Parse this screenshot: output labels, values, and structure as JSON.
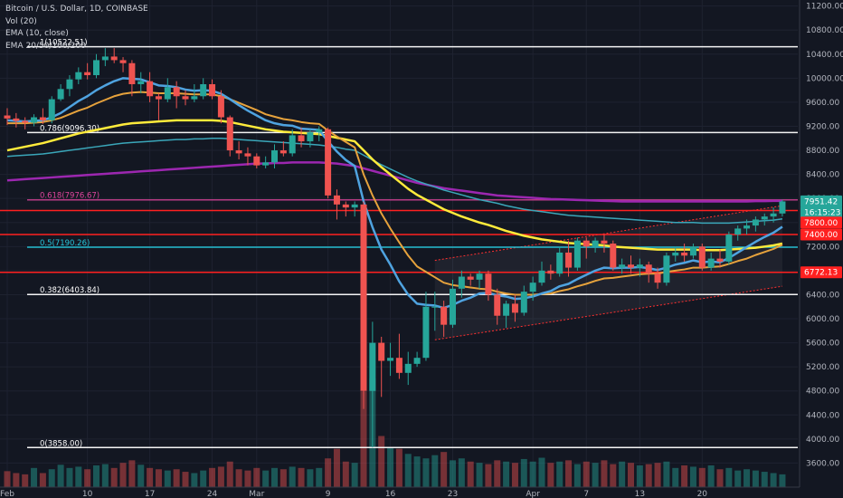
{
  "header": {
    "symbol": "Bitcoin / U.S. Dollar, 1D, COINBASE",
    "vol": "Vol (20)",
    "ema1": "EMA (10, close)",
    "ema2": "EMA 20/50/100/200"
  },
  "colors": {
    "background": "#131722",
    "up": "#26a69a",
    "down": "#ef5350",
    "fib_white": "#ffffff",
    "fib_pink": "#e0459d",
    "fib_cyan": "#26c6da",
    "support_red": "#ff2020",
    "ema10": "#4fa3e0",
    "ema20": "#e6a23c",
    "ema50": "#ffeb3b",
    "ema100": "#3aa6b9",
    "ema200": "#9c27b0"
  },
  "chart_data": {
    "type": "candlestick",
    "ylim": [
      3200,
      11300
    ],
    "y_ticks": [
      "11200.00",
      "10800.00",
      "10400.00",
      "10000.00",
      "9600.00",
      "9200.00",
      "8800.00",
      "8400.00",
      "8000.00",
      "7600.00",
      "7200.00",
      "6800.00",
      "6400.00",
      "6000.00",
      "5600.00",
      "5200.00",
      "4800.00",
      "4400.00",
      "4000.00",
      "3600.00"
    ],
    "x_ticks": [
      {
        "label": "Feb",
        "day": 0
      },
      {
        "label": "10",
        "day": 9
      },
      {
        "label": "17",
        "day": 16
      },
      {
        "label": "24",
        "day": 23
      },
      {
        "label": "Mar",
        "day": 28
      },
      {
        "label": "9",
        "day": 36
      },
      {
        "label": "16",
        "day": 43
      },
      {
        "label": "23",
        "day": 50
      },
      {
        "label": "Apr",
        "day": 59
      },
      {
        "label": "7",
        "day": 65
      },
      {
        "label": "13",
        "day": 71
      },
      {
        "label": "20",
        "day": 78
      }
    ],
    "fib_levels": [
      {
        "label": "1(10522.51)",
        "value": 10522.51,
        "color": "#ffffff"
      },
      {
        "label": "0.786(9096.30)",
        "value": 9096.3,
        "color": "#ffffff"
      },
      {
        "label": "0.618(7976.67)",
        "value": 7976.67,
        "color": "#e0459d"
      },
      {
        "label": "0.5(7190.26)",
        "value": 7190.26,
        "color": "#26c6da"
      },
      {
        "label": "0.382(6403.84)",
        "value": 6403.84,
        "color": "#ffffff"
      },
      {
        "label": "0(3858.00)",
        "value": 3858.0,
        "color": "#ffffff"
      }
    ],
    "support_levels": [
      7800,
      7400,
      6772.13
    ],
    "price_tags": [
      {
        "label": "7951.42",
        "value": 7951.42,
        "color": "#26a69a"
      },
      {
        "label": "16:15:23",
        "value": 7770,
        "color": "#26a69a"
      },
      {
        "label": "7800.00",
        "value": 7600,
        "color": "#ff2020"
      },
      {
        "label": "7400.00",
        "value": 7400,
        "color": "#ff2020"
      },
      {
        "label": "6772.13",
        "value": 6772.13,
        "color": "#ff2020"
      }
    ],
    "candles": [
      {
        "o": 9380,
        "h": 9500,
        "l": 9220,
        "c": 9330
      },
      {
        "o": 9330,
        "h": 9420,
        "l": 9180,
        "c": 9290
      },
      {
        "o": 9290,
        "h": 9350,
        "l": 9150,
        "c": 9260
      },
      {
        "o": 9260,
        "h": 9400,
        "l": 9200,
        "c": 9350
      },
      {
        "o": 9350,
        "h": 9500,
        "l": 9240,
        "c": 9300
      },
      {
        "o": 9300,
        "h": 9700,
        "l": 9250,
        "c": 9650
      },
      {
        "o": 9650,
        "h": 9900,
        "l": 9620,
        "c": 9820
      },
      {
        "o": 9820,
        "h": 10050,
        "l": 9700,
        "c": 9980
      },
      {
        "o": 9980,
        "h": 10180,
        "l": 9900,
        "c": 10100
      },
      {
        "o": 10100,
        "h": 10250,
        "l": 9980,
        "c": 10050
      },
      {
        "o": 10050,
        "h": 10400,
        "l": 10000,
        "c": 10300
      },
      {
        "o": 10300,
        "h": 10500,
        "l": 10200,
        "c": 10360
      },
      {
        "o": 10360,
        "h": 10500,
        "l": 10250,
        "c": 10300
      },
      {
        "o": 10300,
        "h": 10350,
        "l": 10100,
        "c": 10250
      },
      {
        "o": 10250,
        "h": 10300,
        "l": 9700,
        "c": 9900
      },
      {
        "o": 9900,
        "h": 10100,
        "l": 9750,
        "c": 9950
      },
      {
        "o": 9950,
        "h": 10100,
        "l": 9600,
        "c": 9700
      },
      {
        "o": 9700,
        "h": 9750,
        "l": 9300,
        "c": 9650
      },
      {
        "o": 9650,
        "h": 10000,
        "l": 9600,
        "c": 9850
      },
      {
        "o": 9850,
        "h": 9950,
        "l": 9500,
        "c": 9700
      },
      {
        "o": 9700,
        "h": 9800,
        "l": 9550,
        "c": 9650
      },
      {
        "o": 9650,
        "h": 9900,
        "l": 9600,
        "c": 9700
      },
      {
        "o": 9700,
        "h": 10000,
        "l": 9650,
        "c": 9900
      },
      {
        "o": 9900,
        "h": 9980,
        "l": 9650,
        "c": 9700
      },
      {
        "o": 9700,
        "h": 9800,
        "l": 9250,
        "c": 9350
      },
      {
        "o": 9350,
        "h": 9380,
        "l": 8700,
        "c": 8800
      },
      {
        "o": 8800,
        "h": 8950,
        "l": 8650,
        "c": 8750
      },
      {
        "o": 8750,
        "h": 8850,
        "l": 8550,
        "c": 8700
      },
      {
        "o": 8700,
        "h": 8750,
        "l": 8500,
        "c": 8550
      },
      {
        "o": 8550,
        "h": 8700,
        "l": 8500,
        "c": 8600
      },
      {
        "o": 8600,
        "h": 8900,
        "l": 8500,
        "c": 8800
      },
      {
        "o": 8800,
        "h": 8950,
        "l": 8700,
        "c": 8750
      },
      {
        "o": 8750,
        "h": 9150,
        "l": 8700,
        "c": 9050
      },
      {
        "o": 9050,
        "h": 9180,
        "l": 8850,
        "c": 8950
      },
      {
        "o": 8950,
        "h": 9150,
        "l": 8850,
        "c": 9100
      },
      {
        "o": 9100,
        "h": 9200,
        "l": 8950,
        "c": 9150
      },
      {
        "o": 9150,
        "h": 9180,
        "l": 8000,
        "c": 8050
      },
      {
        "o": 8050,
        "h": 8150,
        "l": 7650,
        "c": 7900
      },
      {
        "o": 7900,
        "h": 7950,
        "l": 7700,
        "c": 7850
      },
      {
        "o": 7850,
        "h": 7950,
        "l": 7700,
        "c": 7900
      },
      {
        "o": 7900,
        "h": 7950,
        "l": 4500,
        "c": 4800
      },
      {
        "o": 4800,
        "h": 5950,
        "l": 3858,
        "c": 5600
      },
      {
        "o": 5600,
        "h": 5700,
        "l": 4700,
        "c": 5300
      },
      {
        "o": 5300,
        "h": 5600,
        "l": 5050,
        "c": 5350
      },
      {
        "o": 5350,
        "h": 5750,
        "l": 5000,
        "c": 5100
      },
      {
        "o": 5100,
        "h": 5450,
        "l": 4900,
        "c": 5250
      },
      {
        "o": 5250,
        "h": 5450,
        "l": 5200,
        "c": 5350
      },
      {
        "o": 5350,
        "h": 6450,
        "l": 5300,
        "c": 6200
      },
      {
        "o": 6200,
        "h": 6450,
        "l": 5800,
        "c": 6200
      },
      {
        "o": 6200,
        "h": 6300,
        "l": 5700,
        "c": 5900
      },
      {
        "o": 5900,
        "h": 6650,
        "l": 5850,
        "c": 6500
      },
      {
        "o": 6500,
        "h": 6800,
        "l": 6350,
        "c": 6700
      },
      {
        "o": 6700,
        "h": 6750,
        "l": 6550,
        "c": 6650
      },
      {
        "o": 6650,
        "h": 6800,
        "l": 6500,
        "c": 6750
      },
      {
        "o": 6750,
        "h": 6800,
        "l": 6300,
        "c": 6400
      },
      {
        "o": 6400,
        "h": 6500,
        "l": 5900,
        "c": 6050
      },
      {
        "o": 6050,
        "h": 6300,
        "l": 5850,
        "c": 6250
      },
      {
        "o": 6250,
        "h": 6400,
        "l": 5950,
        "c": 6100
      },
      {
        "o": 6100,
        "h": 6550,
        "l": 6050,
        "c": 6450
      },
      {
        "o": 6450,
        "h": 6700,
        "l": 6300,
        "c": 6600
      },
      {
        "o": 6600,
        "h": 6950,
        "l": 6550,
        "c": 6800
      },
      {
        "o": 6800,
        "h": 6900,
        "l": 6650,
        "c": 6750
      },
      {
        "o": 6750,
        "h": 7200,
        "l": 6700,
        "c": 7100
      },
      {
        "o": 7100,
        "h": 7300,
        "l": 6700,
        "c": 6850
      },
      {
        "o": 6850,
        "h": 7350,
        "l": 6800,
        "c": 7300
      },
      {
        "o": 7300,
        "h": 7350,
        "l": 7000,
        "c": 7200
      },
      {
        "o": 7200,
        "h": 7350,
        "l": 7100,
        "c": 7300
      },
      {
        "o": 7300,
        "h": 7400,
        "l": 7100,
        "c": 7250
      },
      {
        "o": 7250,
        "h": 7300,
        "l": 6800,
        "c": 6850
      },
      {
        "o": 6850,
        "h": 7000,
        "l": 6750,
        "c": 6900
      },
      {
        "o": 6900,
        "h": 7050,
        "l": 6750,
        "c": 6850
      },
      {
        "o": 6850,
        "h": 7000,
        "l": 6700,
        "c": 6900
      },
      {
        "o": 6900,
        "h": 6950,
        "l": 6600,
        "c": 6750
      },
      {
        "o": 6750,
        "h": 6850,
        "l": 6500,
        "c": 6600
      },
      {
        "o": 6600,
        "h": 7100,
        "l": 6550,
        "c": 7050
      },
      {
        "o": 7050,
        "h": 7200,
        "l": 6950,
        "c": 7100
      },
      {
        "o": 7100,
        "h": 7250,
        "l": 6950,
        "c": 7050
      },
      {
        "o": 7050,
        "h": 7250,
        "l": 7000,
        "c": 7200
      },
      {
        "o": 7200,
        "h": 7250,
        "l": 6800,
        "c": 6850
      },
      {
        "o": 6850,
        "h": 7100,
        "l": 6800,
        "c": 7000
      },
      {
        "o": 7000,
        "h": 7150,
        "l": 6850,
        "c": 6950
      },
      {
        "o": 6950,
        "h": 7450,
        "l": 6900,
        "c": 7400
      },
      {
        "o": 7400,
        "h": 7550,
        "l": 7300,
        "c": 7500
      },
      {
        "o": 7500,
        "h": 7650,
        "l": 7400,
        "c": 7550
      },
      {
        "o": 7550,
        "h": 7700,
        "l": 7450,
        "c": 7650
      },
      {
        "o": 7650,
        "h": 7750,
        "l": 7550,
        "c": 7700
      },
      {
        "o": 7700,
        "h": 7850,
        "l": 7600,
        "c": 7750
      },
      {
        "o": 7750,
        "h": 7980,
        "l": 7700,
        "c": 7951.42
      }
    ],
    "volumes": [
      25,
      22,
      20,
      30,
      22,
      28,
      35,
      30,
      32,
      28,
      34,
      36,
      30,
      38,
      42,
      35,
      30,
      28,
      26,
      28,
      24,
      22,
      26,
      30,
      32,
      40,
      28,
      26,
      30,
      26,
      30,
      28,
      32,
      30,
      28,
      30,
      45,
      60,
      40,
      38,
      150,
      170,
      80,
      62,
      60,
      52,
      48,
      45,
      50,
      55,
      42,
      45,
      40,
      38,
      36,
      42,
      40,
      38,
      44,
      40,
      46,
      38,
      40,
      42,
      36,
      40,
      38,
      42,
      36,
      40,
      38,
      34,
      36,
      38,
      40,
      30,
      34,
      32,
      30,
      34,
      28,
      30,
      26,
      28,
      26,
      24,
      22,
      20
    ],
    "ema10": [
      9300,
      9290,
      9280,
      9290,
      9300,
      9350,
      9420,
      9520,
      9620,
      9700,
      9800,
      9880,
      9950,
      10000,
      9990,
      9980,
      9930,
      9880,
      9870,
      9850,
      9810,
      9790,
      9800,
      9790,
      9740,
      9650,
      9550,
      9460,
      9380,
      9300,
      9250,
      9220,
      9210,
      9160,
      9150,
      9140,
      8950,
      8780,
      8640,
      8540,
      7950,
      7520,
      7150,
      6900,
      6620,
      6400,
      6250,
      6230,
      6220,
      6180,
      6230,
      6300,
      6350,
      6420,
      6430,
      6390,
      6370,
      6330,
      6340,
      6370,
      6420,
      6460,
      6540,
      6580,
      6660,
      6730,
      6800,
      6850,
      6840,
      6850,
      6850,
      6860,
      6840,
      6810,
      6850,
      6900,
      6930,
      6970,
      6940,
      6950,
      6940,
      7010,
      7100,
      7190,
      7280,
      7360,
      7430,
      7530
    ],
    "ema20": [
      9250,
      9250,
      9250,
      9260,
      9270,
      9300,
      9340,
      9400,
      9460,
      9510,
      9580,
      9640,
      9700,
      9740,
      9760,
      9770,
      9760,
      9750,
      9750,
      9750,
      9740,
      9730,
      9730,
      9730,
      9700,
      9650,
      9590,
      9530,
      9470,
      9400,
      9360,
      9320,
      9300,
      9270,
      9250,
      9240,
      9130,
      9030,
      8940,
      8850,
      8400,
      8050,
      7750,
      7500,
      7270,
      7050,
      6870,
      6780,
      6690,
      6600,
      6560,
      6540,
      6520,
      6500,
      6490,
      6450,
      6420,
      6400,
      6400,
      6400,
      6410,
      6420,
      6460,
      6490,
      6540,
      6580,
      6630,
      6670,
      6680,
      6700,
      6720,
      6740,
      6750,
      6750,
      6780,
      6800,
      6820,
      6850,
      6850,
      6860,
      6870,
      6910,
      6960,
      7000,
      7060,
      7110,
      7160,
      7230
    ],
    "ema50": [
      8800,
      8830,
      8860,
      8890,
      8920,
      8960,
      9000,
      9040,
      9080,
      9110,
      9140,
      9170,
      9200,
      9230,
      9250,
      9260,
      9270,
      9280,
      9290,
      9300,
      9300,
      9300,
      9300,
      9300,
      9290,
      9270,
      9240,
      9210,
      9180,
      9150,
      9130,
      9110,
      9100,
      9090,
      9080,
      9070,
      9040,
      9010,
      8980,
      8950,
      8800,
      8650,
      8520,
      8400,
      8280,
      8160,
      8060,
      7980,
      7900,
      7820,
      7760,
      7700,
      7650,
      7600,
      7560,
      7510,
      7460,
      7420,
      7380,
      7350,
      7320,
      7300,
      7280,
      7260,
      7250,
      7240,
      7230,
      7220,
      7200,
      7190,
      7180,
      7170,
      7160,
      7150,
      7150,
      7150,
      7150,
      7150,
      7140,
      7140,
      7140,
      7150,
      7160,
      7170,
      7180,
      7200,
      7220,
      7250
    ],
    "ema100": [
      8700,
      8710,
      8720,
      8730,
      8740,
      8760,
      8780,
      8800,
      8820,
      8840,
      8860,
      8880,
      8900,
      8920,
      8930,
      8940,
      8950,
      8960,
      8970,
      8980,
      8980,
      8990,
      8990,
      9000,
      9000,
      8990,
      8980,
      8970,
      8960,
      8950,
      8940,
      8930,
      8920,
      8910,
      8900,
      8890,
      8870,
      8850,
      8820,
      8800,
      8720,
      8640,
      8560,
      8490,
      8420,
      8350,
      8290,
      8240,
      8190,
      8140,
      8100,
      8060,
      8020,
      7980,
      7950,
      7920,
      7880,
      7850,
      7820,
      7800,
      7780,
      7760,
      7740,
      7720,
      7710,
      7700,
      7690,
      7680,
      7670,
      7660,
      7650,
      7640,
      7630,
      7620,
      7610,
      7600,
      7600,
      7600,
      7590,
      7590,
      7590,
      7590,
      7600,
      7610,
      7620,
      7630,
      7640,
      7660
    ],
    "ema200": [
      8300,
      8310,
      8320,
      8330,
      8340,
      8350,
      8360,
      8370,
      8380,
      8390,
      8400,
      8410,
      8420,
      8430,
      8440,
      8450,
      8460,
      8470,
      8480,
      8490,
      8500,
      8510,
      8520,
      8530,
      8540,
      8550,
      8560,
      8570,
      8580,
      8580,
      8590,
      8590,
      8600,
      8600,
      8600,
      8600,
      8590,
      8580,
      8560,
      8540,
      8500,
      8460,
      8420,
      8380,
      8340,
      8300,
      8260,
      8230,
      8200,
      8170,
      8150,
      8130,
      8110,
      8090,
      8070,
      8050,
      8040,
      8030,
      8020,
      8010,
      8000,
      7990,
      7985,
      7980,
      7975,
      7970,
      7965,
      7960,
      7955,
      7950,
      7950,
      7950,
      7950,
      7950,
      7950,
      7950,
      7950,
      7950,
      7950,
      7950,
      7950,
      7950,
      7950,
      7950,
      7955,
      7955,
      7960,
      7960
    ]
  }
}
